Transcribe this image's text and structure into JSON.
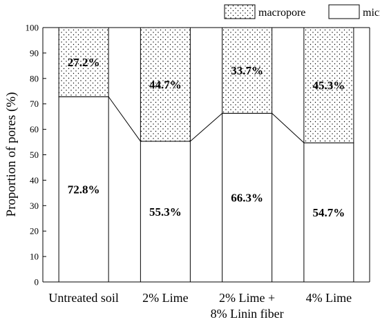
{
  "chart_data": {
    "type": "bar",
    "stacked": true,
    "title": "",
    "xlabel": "",
    "ylabel": "Proportion of pores (%)",
    "ylim": [
      0,
      100
    ],
    "yticks": [
      0,
      10,
      20,
      30,
      40,
      50,
      60,
      70,
      80,
      90,
      100
    ],
    "grid": false,
    "legend_position": "top",
    "categories": [
      [
        "Untreated soil"
      ],
      [
        "2% Lime"
      ],
      [
        "2% Lime +",
        "8% Linin fiber"
      ],
      [
        "4% Lime"
      ]
    ],
    "series": [
      {
        "name": "micropore",
        "pattern": "plain",
        "values": [
          72.8,
          55.3,
          66.3,
          54.7
        ],
        "labels": [
          "72.8%",
          "55.3%",
          "66.3%",
          "54.7%"
        ]
      },
      {
        "name": "macropore",
        "pattern": "dotted",
        "values": [
          27.2,
          44.7,
          33.7,
          45.3
        ],
        "labels": [
          "27.2%",
          "44.7%",
          "33.7%",
          "45.3%"
        ]
      }
    ],
    "connector_lines": true
  }
}
